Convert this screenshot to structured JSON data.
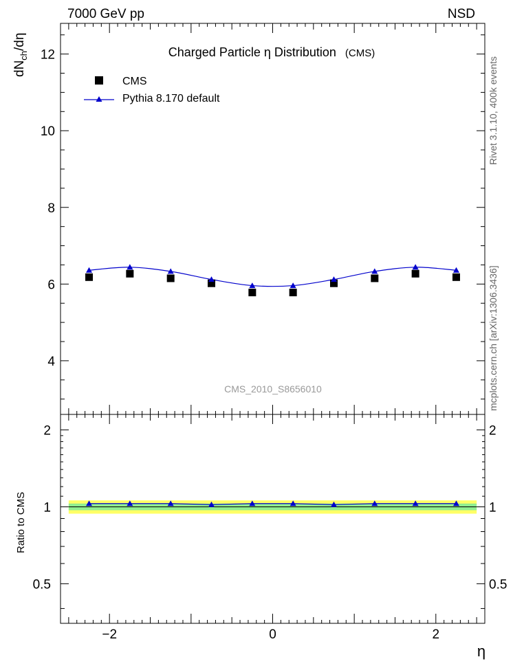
{
  "header": {
    "left": "7000 GeV pp",
    "right": "NSD"
  },
  "title": {
    "main": "Charged Particle  η Distribution",
    "tag": "(CMS)"
  },
  "side_labels": {
    "rivet": "Rivet 3.1.10,  400k events",
    "mcplots": "mcplots.cern.ch [arXiv:1306.3436]"
  },
  "watermark": "CMS_2010_S8656010",
  "colors": {
    "mc": "#0000cc",
    "data": "#000000",
    "band_inner": "#90ee90",
    "band_outer": "#ffff66",
    "watermark": "#999999",
    "side": "#666666"
  },
  "chart_data": [
    {
      "type": "scatter",
      "panel": "main",
      "ylabel": {
        "base": "dN",
        "sub": "ch",
        "rest": "/dη"
      },
      "ylim": [
        2.6,
        12.8
      ],
      "xlim": [
        -2.6,
        2.6
      ],
      "yticks": [
        4,
        6,
        8,
        10,
        12
      ],
      "ytick_labels": [
        "4",
        "6",
        "8",
        "10",
        "12"
      ],
      "x": [
        -2.25,
        -1.75,
        -1.25,
        -0.75,
        -0.25,
        0.25,
        0.75,
        1.25,
        1.75,
        2.25
      ],
      "series": [
        {
          "name": "CMS",
          "marker": "square",
          "values": [
            6.18,
            6.27,
            6.15,
            6.02,
            5.78,
            5.78,
            6.02,
            6.15,
            6.27,
            6.18
          ]
        },
        {
          "name": "Pythia 8.170 default",
          "marker": "triangle",
          "values": [
            6.36,
            6.44,
            6.33,
            6.12,
            5.96,
            5.96,
            6.12,
            6.33,
            6.44,
            6.36
          ]
        }
      ],
      "legend_position": "top-left"
    },
    {
      "type": "line",
      "panel": "ratio",
      "ylabel": "Ratio to CMS",
      "xlabel": "η",
      "ylim": [
        0.35,
        2.3
      ],
      "xlim": [
        -2.6,
        2.6
      ],
      "yticks": [
        0.5,
        1,
        2
      ],
      "ytick_labels": [
        "0.5",
        "1",
        "2"
      ],
      "xticks": [
        -2,
        0,
        2
      ],
      "xtick_labels": [
        "−2",
        "0",
        "2"
      ],
      "band_inner": [
        0.97,
        1.03
      ],
      "band_outer": [
        0.94,
        1.06
      ],
      "x": [
        -2.25,
        -1.75,
        -1.25,
        -0.75,
        -0.25,
        0.25,
        0.75,
        1.25,
        1.75,
        2.25
      ],
      "series": [
        {
          "name": "Pythia 8.170 default",
          "values": [
            1.03,
            1.03,
            1.03,
            1.02,
            1.03,
            1.03,
            1.02,
            1.03,
            1.03,
            1.03
          ]
        }
      ]
    }
  ]
}
